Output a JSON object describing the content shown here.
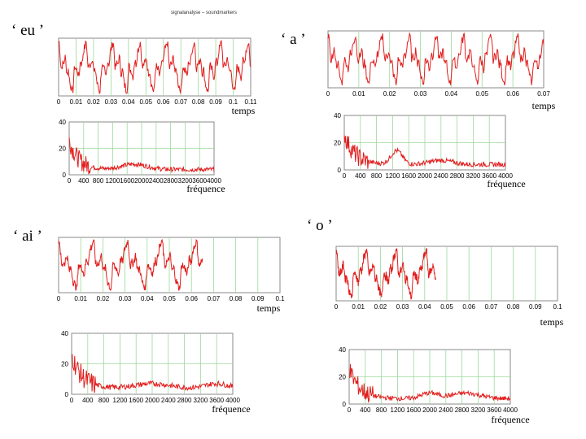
{
  "header_text": "signalanalyse  –  soundmarkers",
  "chart_data": [
    {
      "type": "line",
      "id": "eu-time",
      "vowel": "‘ eu ’",
      "xlabel": "temps",
      "ylabel": "",
      "xlim": [
        0,
        0.11
      ],
      "xticks": [
        "0",
        "0.01",
        "0.02",
        "0.03",
        "0.04",
        "0.05",
        "0.06",
        "0.07",
        "0.08",
        "0.09",
        "0.1",
        "0.11"
      ],
      "yticks": [],
      "grid": true,
      "signal": "periodic",
      "period": 0.0155,
      "duration": 0.11,
      "color": "#e11d1d"
    },
    {
      "type": "line",
      "id": "eu-freq",
      "vowel": "",
      "xlabel": "fréquence",
      "ylabel": "",
      "xlim": [
        0,
        4000
      ],
      "ylim": [
        0,
        40
      ],
      "xticks": [
        "0",
        "400",
        "800",
        "1200",
        "1600",
        "2000",
        "2400",
        "2800",
        "3200",
        "3600",
        "4000"
      ],
      "yticks": [
        "0",
        "20",
        "40"
      ],
      "grid": true,
      "signal": "spectrum",
      "peaks": [
        [
          1800,
          4,
          500
        ]
      ],
      "color": "#e11d1d"
    },
    {
      "type": "line",
      "id": "a-time",
      "vowel": "‘ a ’",
      "xlabel": "temps",
      "ylabel": "",
      "xlim": [
        0,
        0.07
      ],
      "xticks": [
        "0",
        "0.01",
        "0.02",
        "0.03",
        "0.04",
        "0.05",
        "0.06",
        "0.07"
      ],
      "yticks": [],
      "grid": true,
      "signal": "periodic",
      "period": 0.0088,
      "duration": 0.07,
      "color": "#e11d1d"
    },
    {
      "type": "line",
      "id": "a-freq",
      "vowel": "",
      "xlabel": "fréquence",
      "ylabel": "",
      "xlim": [
        0,
        4000
      ],
      "ylim": [
        0,
        40
      ],
      "xticks": [
        "0",
        "400",
        "800",
        "1200",
        "1600",
        "2000",
        "2400",
        "2800",
        "3200",
        "3600",
        "4000"
      ],
      "yticks": [
        "0",
        "20",
        "40"
      ],
      "grid": true,
      "signal": "spectrum",
      "peaks": [
        [
          1300,
          10,
          200
        ],
        [
          2400,
          3,
          400
        ]
      ],
      "color": "#e11d1d"
    },
    {
      "type": "line",
      "id": "ai-time",
      "vowel": "‘ ai ’",
      "xlabel": "temps",
      "ylabel": "",
      "xlim": [
        0,
        0.1
      ],
      "xticks": [
        "0",
        "0.01",
        "0.02",
        "0.03",
        "0.04",
        "0.05",
        "0.06",
        "0.07",
        "0.08",
        "0.09",
        "0.1"
      ],
      "yticks": [],
      "grid": true,
      "signal": "periodic",
      "period": 0.0155,
      "duration": 0.065,
      "color": "#e11d1d"
    },
    {
      "type": "line",
      "id": "ai-freq",
      "vowel": "",
      "xlabel": "fréquence",
      "ylabel": "",
      "xlim": [
        0,
        4000
      ],
      "ylim": [
        0,
        40
      ],
      "xticks": [
        "0",
        "400",
        "800",
        "1200",
        "1600",
        "2000",
        "2400",
        "2800",
        "3200",
        "3600",
        "4000"
      ],
      "yticks": [
        "0",
        "20",
        "40"
      ],
      "grid": true,
      "signal": "spectrum",
      "peaks": [
        [
          2000,
          3,
          600
        ],
        [
          3600,
          3,
          400
        ]
      ],
      "color": "#e11d1d"
    },
    {
      "type": "line",
      "id": "o-time",
      "vowel": "‘ o ’",
      "xlabel": "temps",
      "ylabel": "",
      "xlim": [
        0,
        0.1
      ],
      "xticks": [
        "0",
        "0.01",
        "0.02",
        "0.03",
        "0.04",
        "0.05",
        "0.06",
        "0.07",
        "0.08",
        "0.09",
        "0.1"
      ],
      "yticks": [],
      "grid": true,
      "signal": "periodic",
      "period": 0.0135,
      "duration": 0.045,
      "color": "#e11d1d"
    },
    {
      "type": "line",
      "id": "o-freq",
      "vowel": "",
      "xlabel": "fréquence",
      "ylabel": "",
      "xlim": [
        0,
        4000
      ],
      "ylim": [
        0,
        40
      ],
      "xticks": [
        "0",
        "400",
        "800",
        "1200",
        "1600",
        "2000",
        "2400",
        "2800",
        "3200",
        "3600",
        "4000"
      ],
      "yticks": [
        "0",
        "20",
        "40"
      ],
      "grid": true,
      "signal": "spectrum",
      "peaks": [
        [
          2000,
          4,
          300
        ],
        [
          2900,
          4,
          500
        ]
      ],
      "color": "#e11d1d"
    }
  ]
}
